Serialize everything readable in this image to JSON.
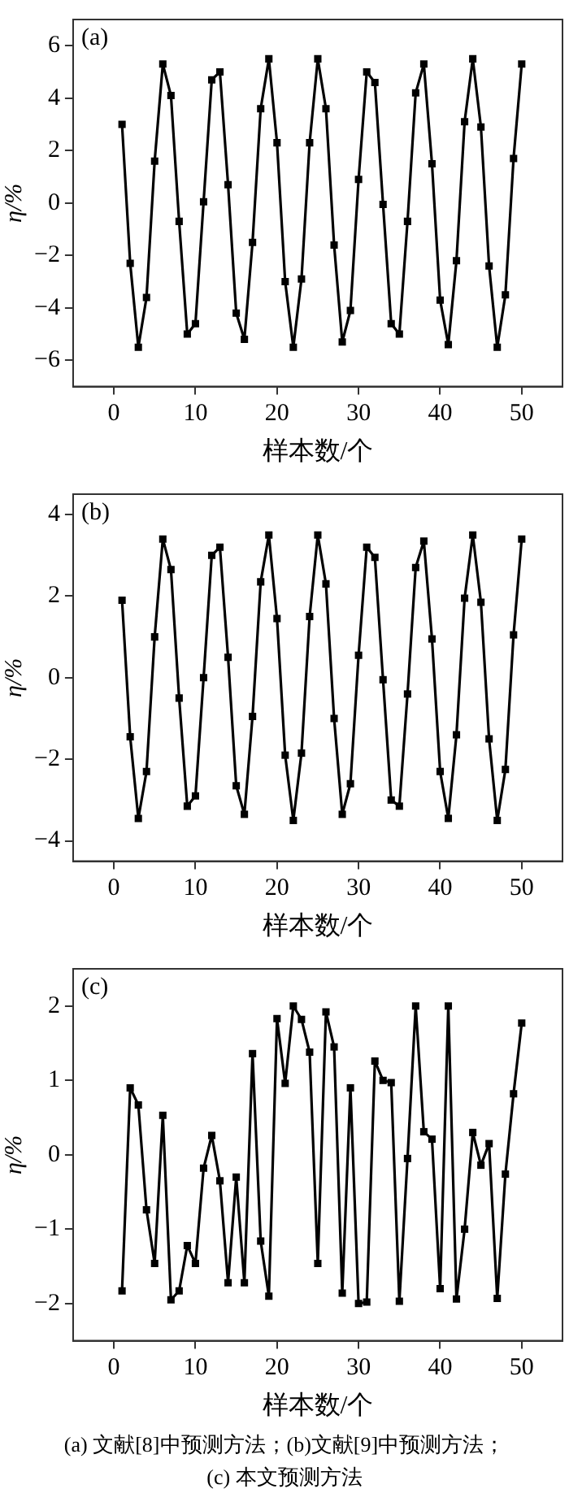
{
  "chart_data": [
    {
      "type": "line",
      "title": "(a)",
      "xlabel": "样本数/个",
      "ylabel": "η/%",
      "marker": "square",
      "color": "#000000",
      "x": [
        1,
        2,
        3,
        4,
        5,
        6,
        7,
        8,
        9,
        10,
        11,
        12,
        13,
        14,
        15,
        16,
        17,
        18,
        19,
        20,
        21,
        22,
        23,
        24,
        25,
        26,
        27,
        28,
        29,
        30,
        31,
        32,
        33,
        34,
        35,
        36,
        37,
        38,
        39,
        40,
        41,
        42,
        43,
        44,
        45,
        46,
        47,
        48,
        49,
        50
      ],
      "values": [
        3.0,
        -2.3,
        -5.5,
        -3.6,
        1.6,
        5.3,
        4.1,
        -0.7,
        -5.0,
        -4.6,
        0.05,
        4.7,
        5.0,
        0.7,
        -4.2,
        -5.2,
        -1.5,
        3.6,
        5.5,
        2.3,
        -3.0,
        -5.5,
        -2.9,
        2.3,
        5.5,
        3.6,
        -1.6,
        -5.3,
        -4.1,
        0.9,
        5.0,
        4.6,
        -0.05,
        -4.6,
        -5.0,
        -0.7,
        4.2,
        5.3,
        1.5,
        -3.7,
        -5.4,
        -2.2,
        3.1,
        5.5,
        2.9,
        -2.4,
        -5.5,
        -3.5,
        1.7,
        5.3
      ],
      "xlim": [
        -5,
        55
      ],
      "xticks": [
        0,
        10,
        20,
        30,
        40,
        50
      ],
      "ylim": [
        -7,
        7
      ],
      "yticks": [
        -6,
        -4,
        -2,
        0,
        2,
        4,
        6
      ]
    },
    {
      "type": "line",
      "title": "(b)",
      "xlabel": "样本数/个",
      "ylabel": "η/%",
      "marker": "square",
      "color": "#000000",
      "x": [
        1,
        2,
        3,
        4,
        5,
        6,
        7,
        8,
        9,
        10,
        11,
        12,
        13,
        14,
        15,
        16,
        17,
        18,
        19,
        20,
        21,
        22,
        23,
        24,
        25,
        26,
        27,
        28,
        29,
        30,
        31,
        32,
        33,
        34,
        35,
        36,
        37,
        38,
        39,
        40,
        41,
        42,
        43,
        44,
        45,
        46,
        47,
        48,
        49,
        50
      ],
      "values": [
        1.9,
        -1.45,
        -3.45,
        -2.3,
        1.0,
        3.4,
        2.65,
        -0.5,
        -3.15,
        -2.9,
        0.0,
        3.0,
        3.2,
        0.5,
        -2.65,
        -3.35,
        -0.95,
        2.35,
        3.5,
        1.45,
        -1.9,
        -3.5,
        -1.85,
        1.5,
        3.5,
        2.3,
        -1.0,
        -3.35,
        -2.6,
        0.55,
        3.2,
        2.95,
        -0.05,
        -3.0,
        -3.15,
        -0.4,
        2.7,
        3.35,
        0.95,
        -2.3,
        -3.45,
        -1.4,
        1.95,
        3.5,
        1.85,
        -1.5,
        -3.5,
        -2.25,
        1.05,
        3.4
      ],
      "xlim": [
        -5,
        55
      ],
      "xticks": [
        0,
        10,
        20,
        30,
        40,
        50
      ],
      "ylim": [
        -4.5,
        4.5
      ],
      "yticks": [
        -4,
        -2,
        0,
        2,
        4
      ]
    },
    {
      "type": "line",
      "title": "(c)",
      "xlabel": "样本数/个",
      "ylabel": "η/%",
      "marker": "square",
      "color": "#000000",
      "x": [
        1,
        2,
        3,
        4,
        5,
        6,
        7,
        8,
        9,
        10,
        11,
        12,
        13,
        14,
        15,
        16,
        17,
        18,
        19,
        20,
        21,
        22,
        23,
        24,
        25,
        26,
        27,
        28,
        29,
        30,
        31,
        32,
        33,
        34,
        35,
        36,
        37,
        38,
        39,
        40,
        41,
        42,
        43,
        44,
        45,
        46,
        47,
        48,
        49,
        50
      ],
      "values": [
        -1.83,
        0.9,
        0.67,
        -0.74,
        -1.46,
        0.53,
        -1.95,
        -1.83,
        -1.22,
        -1.46,
        -0.18,
        0.26,
        -0.35,
        -1.72,
        -0.3,
        -1.72,
        1.36,
        -1.16,
        -1.9,
        1.83,
        0.96,
        2.0,
        1.82,
        1.38,
        -1.46,
        1.92,
        1.45,
        -1.86,
        0.9,
        -2.0,
        -1.98,
        1.26,
        1.0,
        0.97,
        -1.97,
        -0.05,
        2.0,
        0.31,
        0.21,
        -1.8,
        2.0,
        -1.94,
        -1.0,
        0.3,
        -0.14,
        0.15,
        -1.93,
        -0.26,
        0.82,
        1.77
      ],
      "xlim": [
        -5,
        55
      ],
      "xticks": [
        0,
        10,
        20,
        30,
        40,
        50
      ],
      "ylim": [
        -2.5,
        2.5
      ],
      "yticks": [
        -2,
        -1,
        0,
        1,
        2
      ],
      "annotations": [
        "(a)  文献[8]中预测方法；(b)文献[9]中预测方法；",
        "(c)  本文预测方法"
      ]
    }
  ]
}
